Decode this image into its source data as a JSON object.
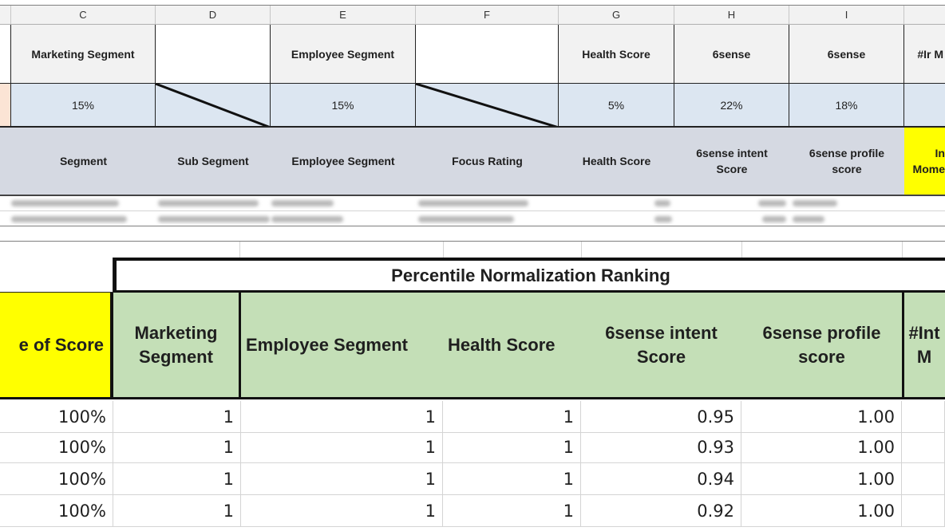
{
  "top": {
    "column_letters": [
      "C",
      "D",
      "E",
      "F",
      "G",
      "H",
      "I"
    ],
    "row1": [
      "Marketing Segment",
      "",
      "Employee Segment",
      "",
      "Health Score",
      "6sense",
      "6sense",
      "#Ir M"
    ],
    "weights": [
      "15%",
      "",
      "15%",
      "",
      "5%",
      "22%",
      "18%"
    ],
    "row3": [
      "Segment",
      "Sub Segment",
      "Employee Segment",
      "Focus Rating",
      "Health Score",
      "6sense intent Score",
      "6sense profile score",
      "In Mome"
    ]
  },
  "bottom": {
    "group_header": "Percentile Normalization Ranking",
    "left_header": "e of Score",
    "column_headers": [
      "Marketing Segment",
      "Employee Segment",
      "Health Score",
      "6sense intent Score",
      "6sense profile score",
      "#Int M"
    ],
    "rows": [
      [
        "100%",
        "1",
        "1",
        "1",
        "0.95",
        "1.00"
      ],
      [
        "100%",
        "1",
        "1",
        "1",
        "0.93",
        "1.00"
      ],
      [
        "100%",
        "1",
        "1",
        "1",
        "0.94",
        "1.00"
      ],
      [
        "100%",
        "1",
        "1",
        "1",
        "0.92",
        "1.00"
      ]
    ]
  },
  "colors": {
    "header_grey": "#f2f2f2",
    "weights_blue": "#dce6f1",
    "field_grey": "#d5d9e2",
    "highlight_yellow": "#ffff00",
    "ranking_green": "#c4dfb7"
  }
}
